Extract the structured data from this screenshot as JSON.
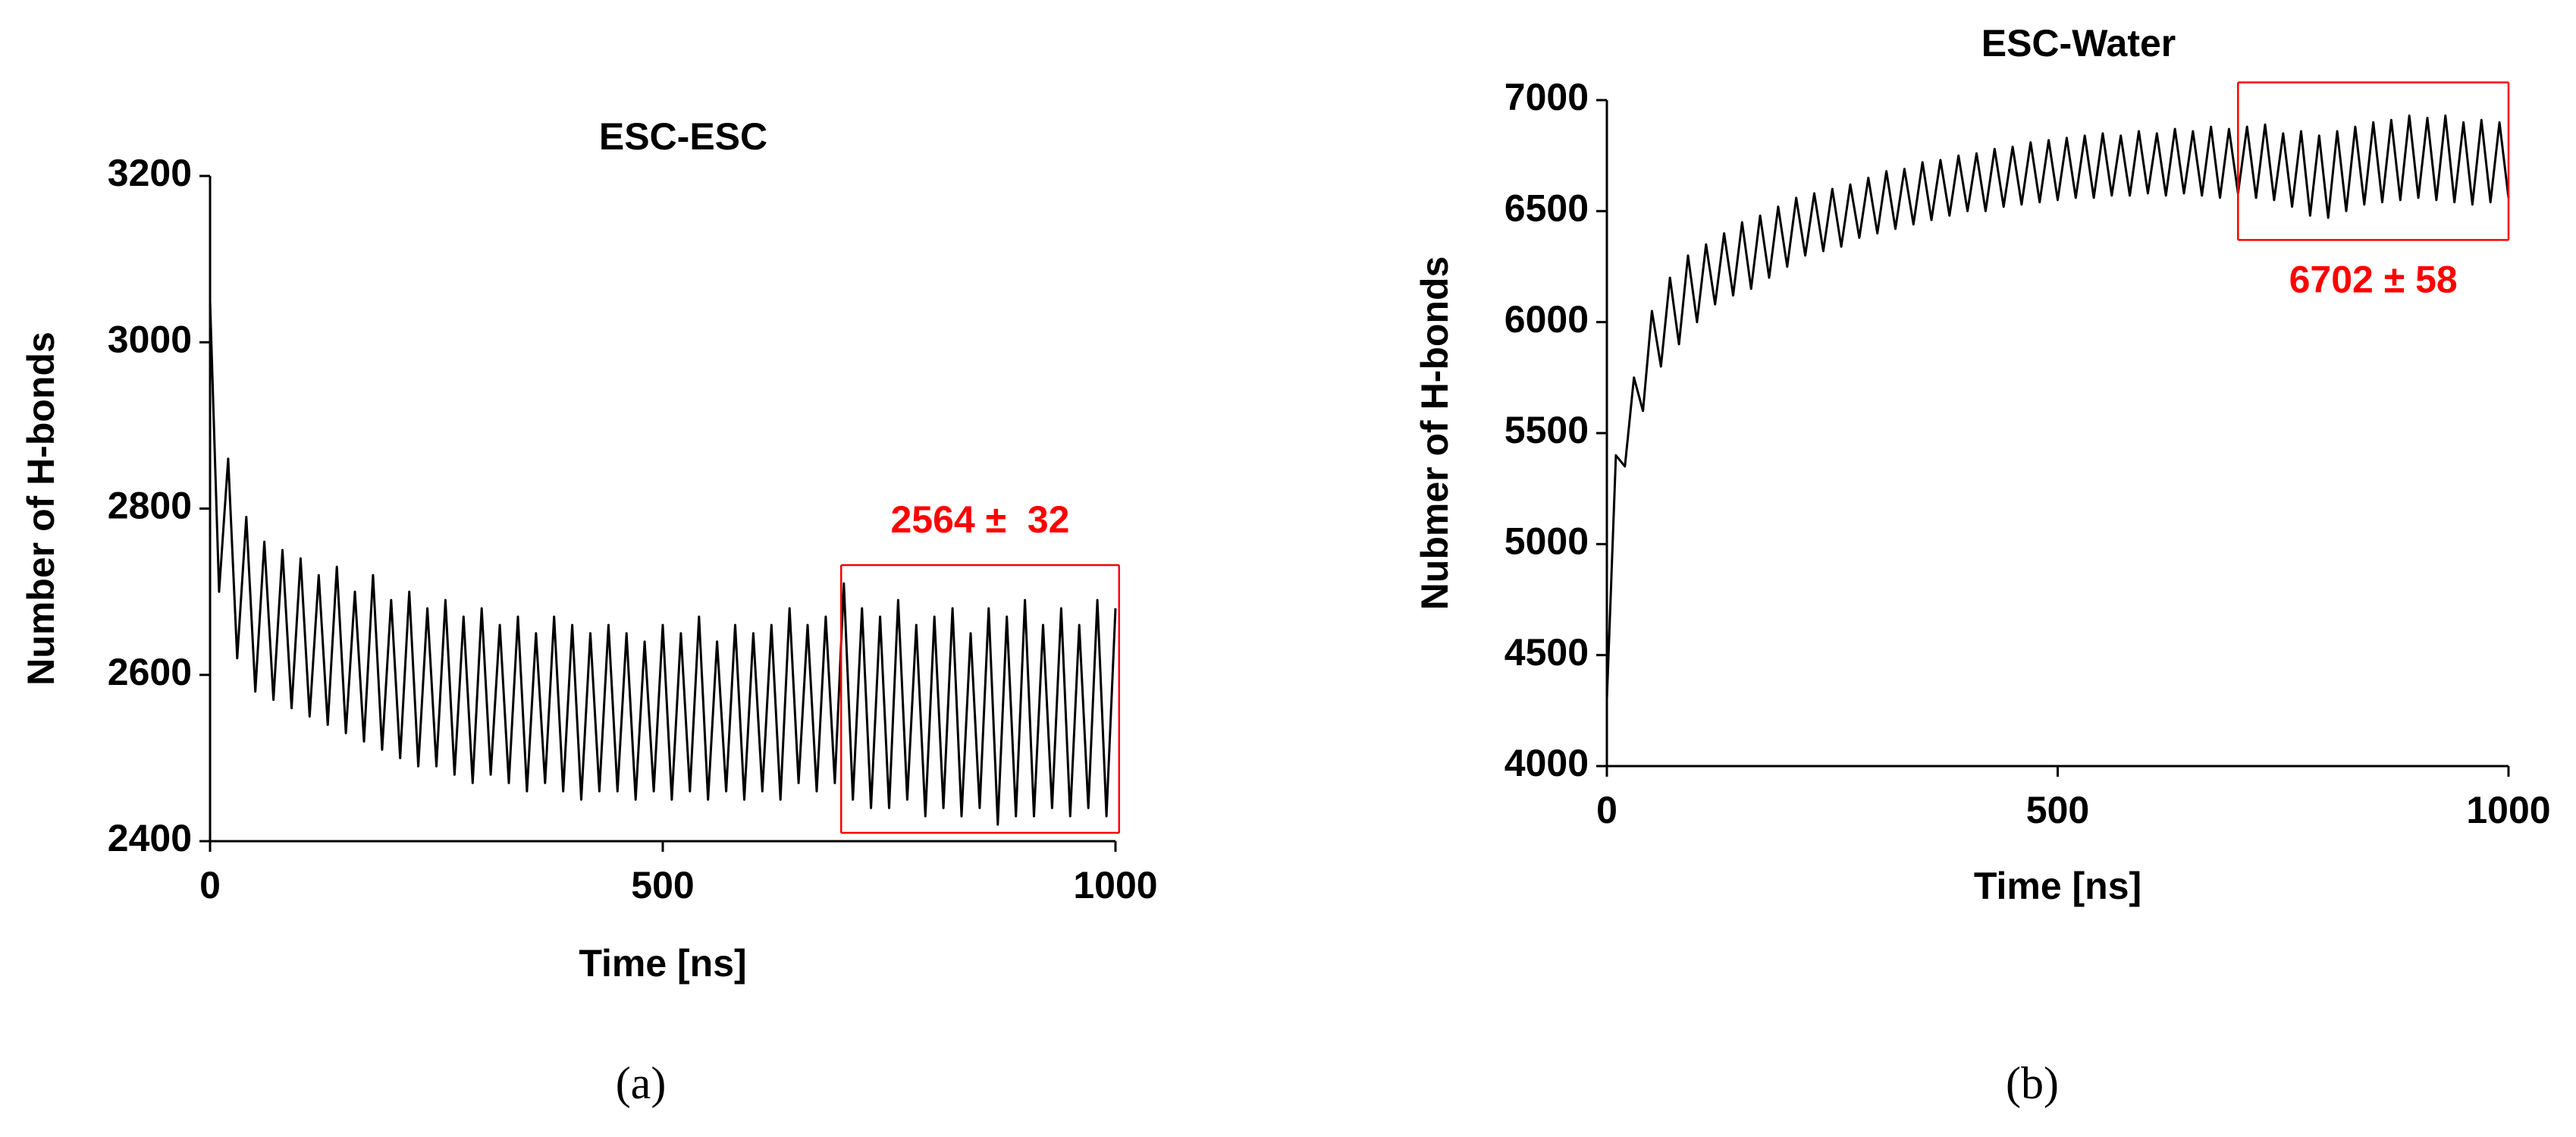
{
  "chart_data": [
    {
      "type": "line",
      "title": "ESC-ESC",
      "caption": "(a)",
      "xlabel": "Time [ns]",
      "ylabel": "Number of H-bonds",
      "color": "#000000",
      "xlim": [
        0,
        1000
      ],
      "xticks": [
        0,
        500,
        1000
      ],
      "ylim": [
        2400,
        3200
      ],
      "yticks": [
        2400,
        2600,
        2800,
        3000,
        3200
      ],
      "x": [
        0,
        10,
        20,
        30,
        40,
        50,
        60,
        70,
        80,
        90,
        100,
        110,
        120,
        130,
        140,
        150,
        160,
        170,
        180,
        190,
        200,
        210,
        220,
        230,
        240,
        250,
        260,
        270,
        280,
        290,
        300,
        310,
        320,
        330,
        340,
        350,
        360,
        370,
        380,
        390,
        400,
        410,
        420,
        430,
        440,
        450,
        460,
        470,
        480,
        490,
        500,
        510,
        520,
        530,
        540,
        550,
        560,
        570,
        580,
        590,
        600,
        610,
        620,
        630,
        640,
        650,
        660,
        670,
        680,
        690,
        700,
        710,
        720,
        730,
        740,
        750,
        760,
        770,
        780,
        790,
        800,
        810,
        820,
        830,
        840,
        850,
        860,
        870,
        880,
        890,
        900,
        910,
        920,
        930,
        940,
        950,
        960,
        970,
        980,
        990,
        1000
      ],
      "values": [
        3050,
        2700,
        2860,
        2620,
        2790,
        2580,
        2760,
        2570,
        2750,
        2560,
        2740,
        2550,
        2720,
        2540,
        2730,
        2530,
        2700,
        2520,
        2720,
        2510,
        2690,
        2500,
        2700,
        2490,
        2680,
        2490,
        2690,
        2480,
        2670,
        2470,
        2680,
        2480,
        2660,
        2470,
        2670,
        2460,
        2650,
        2470,
        2670,
        2460,
        2660,
        2450,
        2650,
        2460,
        2660,
        2460,
        2650,
        2450,
        2640,
        2460,
        2660,
        2450,
        2650,
        2460,
        2670,
        2450,
        2640,
        2460,
        2660,
        2450,
        2650,
        2460,
        2660,
        2450,
        2680,
        2470,
        2660,
        2460,
        2670,
        2470,
        2710,
        2450,
        2680,
        2440,
        2670,
        2440,
        2690,
        2450,
        2660,
        2430,
        2670,
        2440,
        2680,
        2430,
        2650,
        2440,
        2680,
        2420,
        2670,
        2430,
        2690,
        2430,
        2660,
        2440,
        2680,
        2430,
        2660,
        2440,
        2690,
        2430,
        2680
      ],
      "highlight": {
        "xlim": [
          697,
          1004
        ],
        "ylim": [
          2410,
          2732
        ],
        "color": "#ff0000",
        "label": "2564 ±  32"
      }
    },
    {
      "type": "line",
      "title": "ESC-Water",
      "caption": "(b)",
      "xlabel": "Time [ns]",
      "ylabel": "Nubmer of H-bonds",
      "color": "#000000",
      "xlim": [
        0,
        1000
      ],
      "xticks": [
        0,
        500,
        1000
      ],
      "ylim": [
        4000,
        7000
      ],
      "yticks": [
        4000,
        4500,
        5000,
        5500,
        6000,
        6500,
        7000
      ],
      "x": [
        0,
        10,
        20,
        30,
        40,
        50,
        60,
        70,
        80,
        90,
        100,
        110,
        120,
        130,
        140,
        150,
        160,
        170,
        180,
        190,
        200,
        210,
        220,
        230,
        240,
        250,
        260,
        270,
        280,
        290,
        300,
        310,
        320,
        330,
        340,
        350,
        360,
        370,
        380,
        390,
        400,
        410,
        420,
        430,
        440,
        450,
        460,
        470,
        480,
        490,
        500,
        510,
        520,
        530,
        540,
        550,
        560,
        570,
        580,
        590,
        600,
        610,
        620,
        630,
        640,
        650,
        660,
        670,
        680,
        690,
        700,
        710,
        720,
        730,
        740,
        750,
        760,
        770,
        780,
        790,
        800,
        810,
        820,
        830,
        840,
        850,
        860,
        870,
        880,
        890,
        900,
        910,
        920,
        930,
        940,
        950,
        960,
        970,
        980,
        990,
        1000
      ],
      "values": [
        4300,
        5400,
        5350,
        5750,
        5600,
        6050,
        5800,
        6200,
        5900,
        6300,
        6000,
        6350,
        6080,
        6400,
        6120,
        6450,
        6150,
        6480,
        6200,
        6520,
        6250,
        6560,
        6300,
        6580,
        6320,
        6600,
        6340,
        6620,
        6380,
        6650,
        6400,
        6680,
        6420,
        6690,
        6440,
        6720,
        6460,
        6730,
        6480,
        6750,
        6500,
        6760,
        6500,
        6780,
        6520,
        6790,
        6530,
        6810,
        6540,
        6820,
        6550,
        6830,
        6560,
        6840,
        6560,
        6850,
        6570,
        6840,
        6570,
        6860,
        6580,
        6850,
        6570,
        6870,
        6580,
        6860,
        6570,
        6880,
        6560,
        6870,
        6580,
        6880,
        6560,
        6890,
        6550,
        6850,
        6520,
        6860,
        6480,
        6840,
        6470,
        6860,
        6500,
        6880,
        6530,
        6900,
        6540,
        6910,
        6550,
        6930,
        6560,
        6920,
        6550,
        6930,
        6540,
        6900,
        6530,
        6910,
        6540,
        6900,
        6560
      ],
      "highlight": {
        "xlim": [
          700,
          1000
        ],
        "ylim": [
          6370,
          7080
        ],
        "color": "#ff0000",
        "label": "6702 ± 58"
      }
    }
  ]
}
